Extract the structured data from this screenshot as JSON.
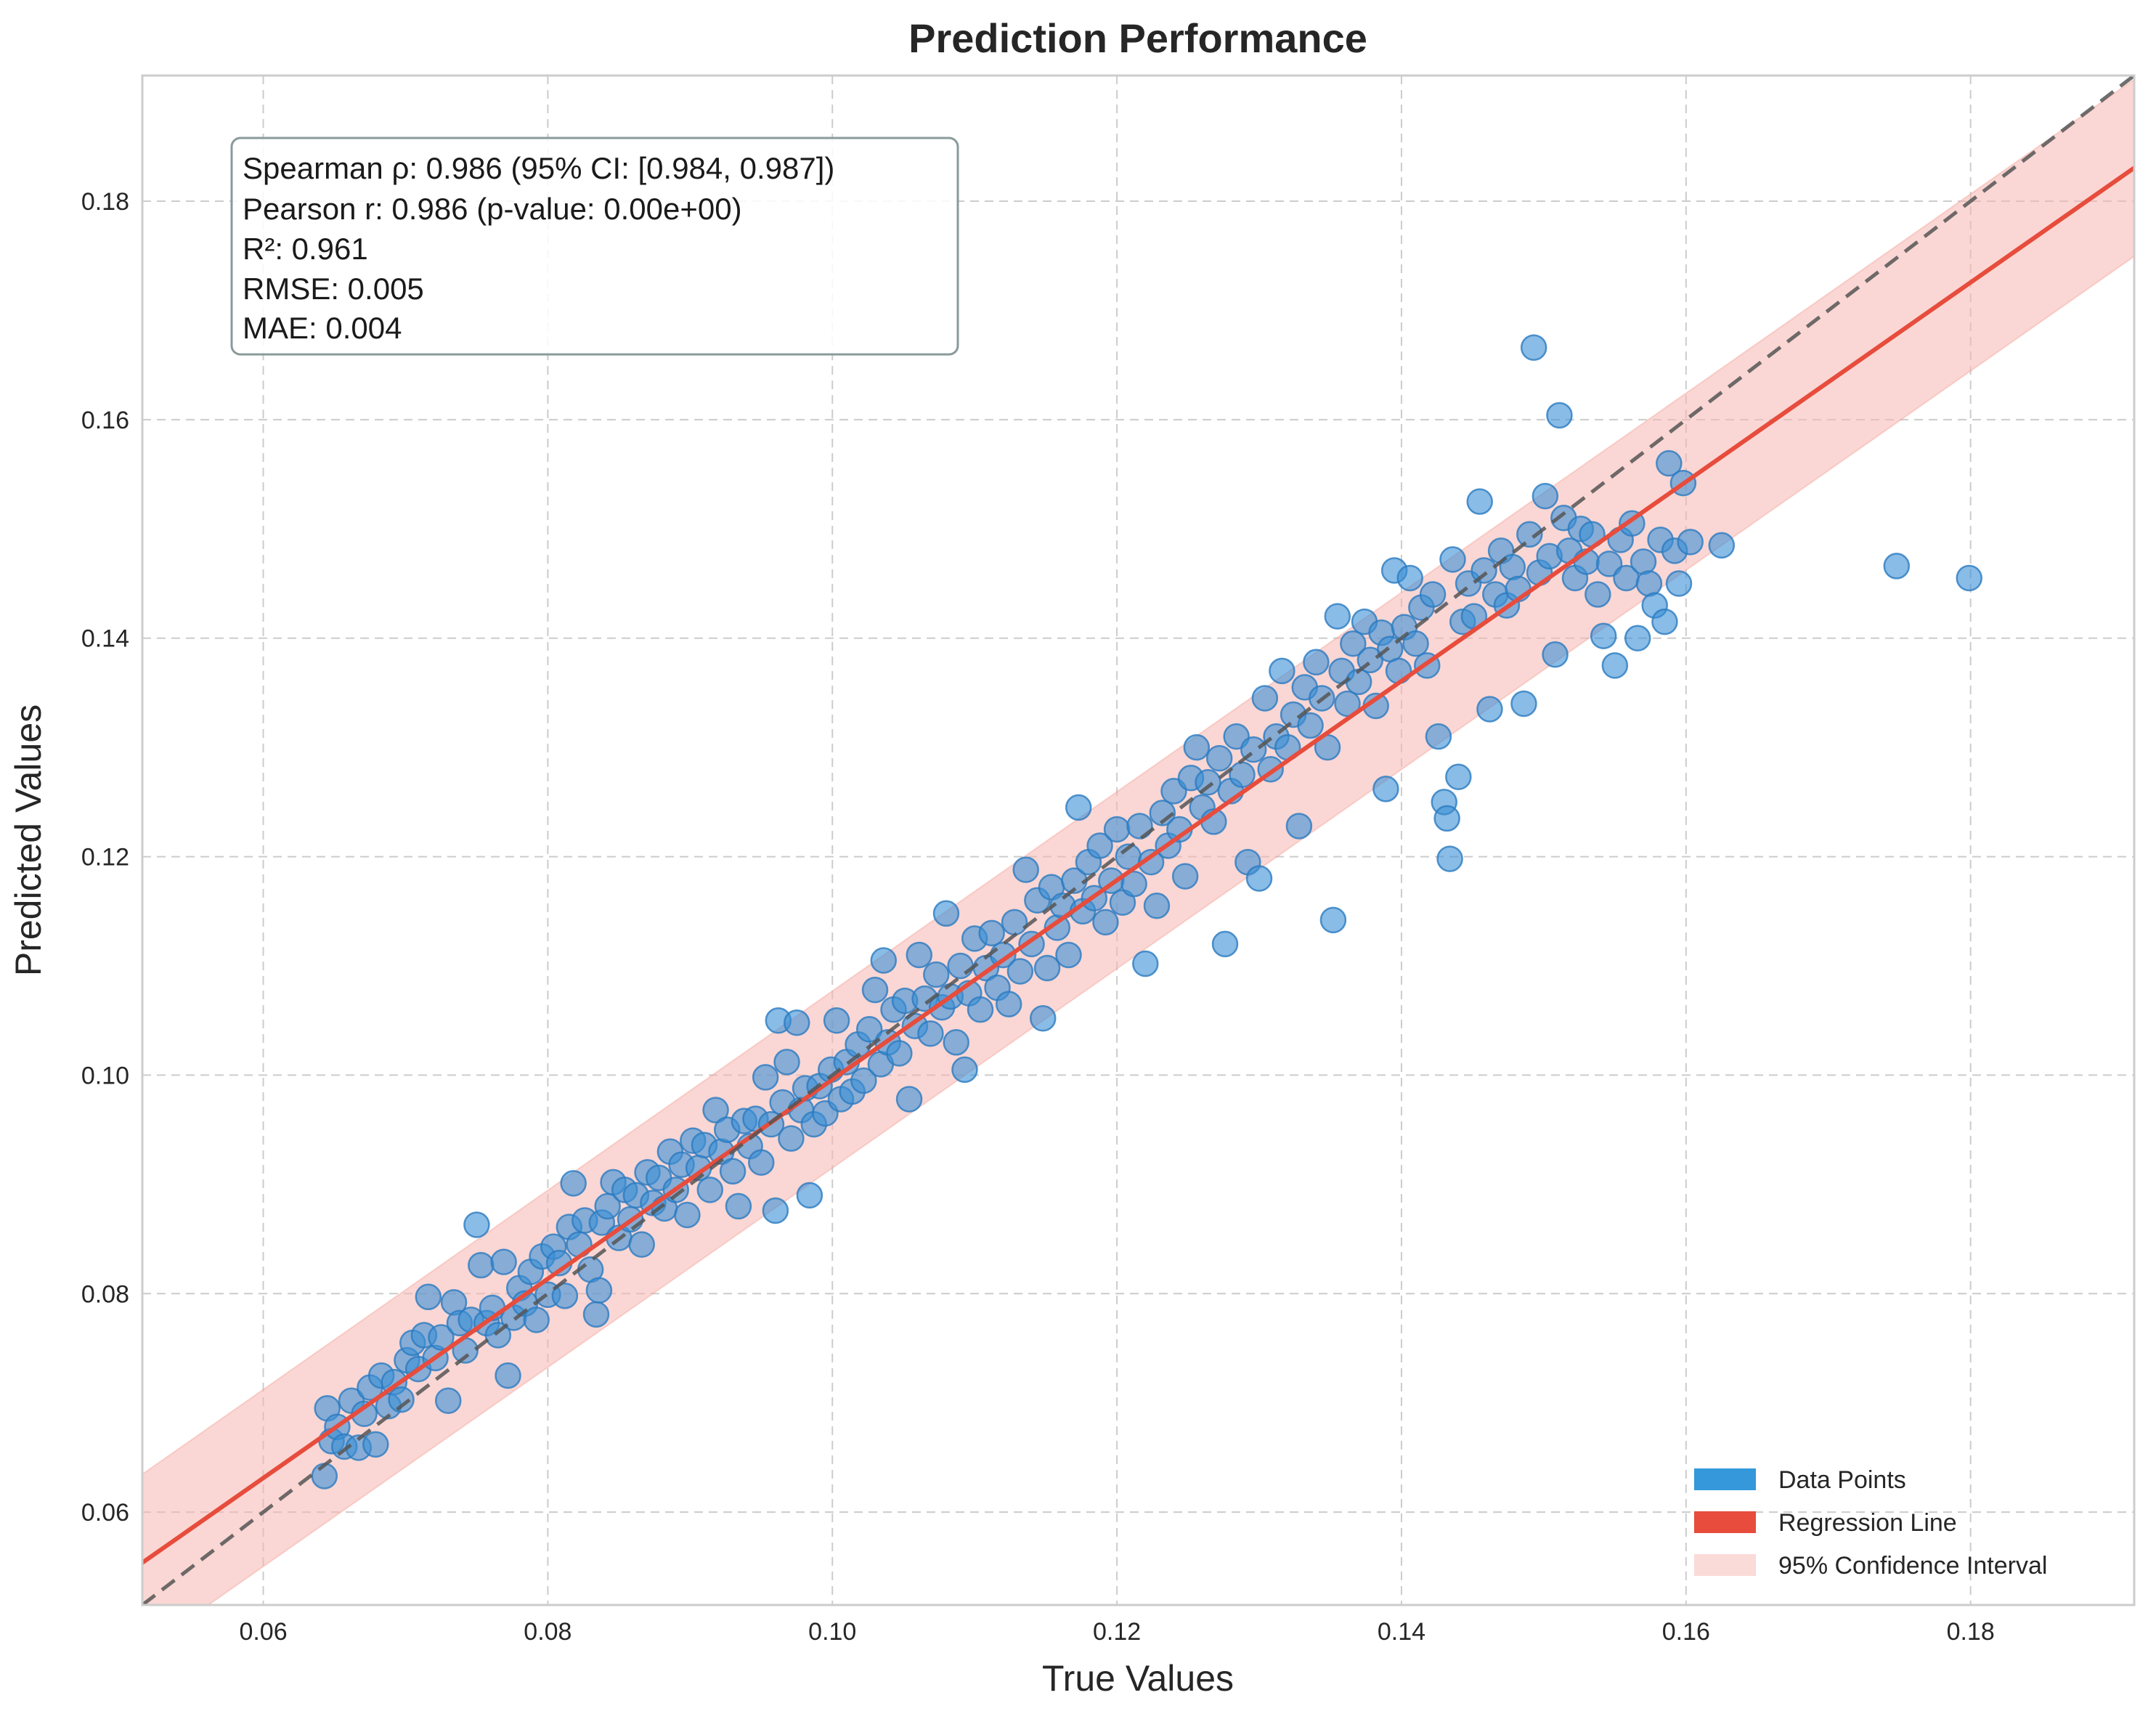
{
  "chart_data": {
    "type": "scatter",
    "title": "Prediction Performance",
    "xlabel": "True Values",
    "ylabel": "Predicted Values",
    "xlim": [
      0.0515,
      0.1915
    ],
    "ylim": [
      0.0515,
      0.1915
    ],
    "xticks": [
      "0.06",
      "0.08",
      "0.10",
      "0.12",
      "0.14",
      "0.16",
      "0.18"
    ],
    "yticks": [
      "0.06",
      "0.08",
      "0.10",
      "0.12",
      "0.14",
      "0.16",
      "0.18"
    ],
    "grid": true,
    "stats_box": {
      "lines": [
        "Spearman ρ: 0.986 (95% CI: [0.984, 0.987])",
        "Pearson r: 0.986 (p-value: 0.00e+00)",
        "R²: 0.961",
        "RMSE: 0.005",
        "MAE: 0.004"
      ],
      "placement": "top-left"
    },
    "regression_line": {
      "slope": 0.912,
      "intercept": 0.0084,
      "color": "#e74c3c"
    },
    "identity_line": {
      "slope": 1,
      "intercept": 0,
      "color": "#555555"
    },
    "confidence_interval": {
      "half_width": 0.0081,
      "color": "#f5b7b1"
    },
    "legend": {
      "placement": "bottom-right",
      "entries": [
        {
          "label": "Data Points",
          "color": "#3498db"
        },
        {
          "label": "Regression Line",
          "color": "#e74c3c"
        },
        {
          "label": "95% Confidence Interval",
          "color": "#fadbd8"
        }
      ]
    },
    "points": [
      [
        0.0643,
        0.0633
      ],
      [
        0.0645,
        0.0695
      ],
      [
        0.0648,
        0.0665
      ],
      [
        0.0652,
        0.0678
      ],
      [
        0.0657,
        0.066
      ],
      [
        0.0662,
        0.0702
      ],
      [
        0.0667,
        0.0659
      ],
      [
        0.0671,
        0.069
      ],
      [
        0.0675,
        0.0714
      ],
      [
        0.0679,
        0.0662
      ],
      [
        0.0683,
        0.0725
      ],
      [
        0.0688,
        0.0697
      ],
      [
        0.0692,
        0.0719
      ],
      [
        0.0697,
        0.0703
      ],
      [
        0.0701,
        0.0739
      ],
      [
        0.0705,
        0.0755
      ],
      [
        0.0709,
        0.0731
      ],
      [
        0.0713,
        0.0762
      ],
      [
        0.0716,
        0.0797
      ],
      [
        0.0721,
        0.0741
      ],
      [
        0.0725,
        0.076
      ],
      [
        0.073,
        0.0702
      ],
      [
        0.0734,
        0.0792
      ],
      [
        0.0738,
        0.0773
      ],
      [
        0.0742,
        0.0748
      ],
      [
        0.0746,
        0.0776
      ],
      [
        0.075,
        0.0863
      ],
      [
        0.0753,
        0.0826
      ],
      [
        0.0757,
        0.0773
      ],
      [
        0.0761,
        0.0787
      ],
      [
        0.0765,
        0.0762
      ],
      [
        0.0769,
        0.0829
      ],
      [
        0.0772,
        0.0725
      ],
      [
        0.0776,
        0.0778
      ],
      [
        0.078,
        0.0805
      ],
      [
        0.0784,
        0.0791
      ],
      [
        0.0788,
        0.082
      ],
      [
        0.0792,
        0.0776
      ],
      [
        0.0796,
        0.0834
      ],
      [
        0.08,
        0.0799
      ],
      [
        0.0804,
        0.0843
      ],
      [
        0.0808,
        0.0828
      ],
      [
        0.0812,
        0.0798
      ],
      [
        0.0815,
        0.0861
      ],
      [
        0.0818,
        0.0901
      ],
      [
        0.0822,
        0.0845
      ],
      [
        0.0826,
        0.0867
      ],
      [
        0.083,
        0.0822
      ],
      [
        0.0834,
        0.0781
      ],
      [
        0.0836,
        0.0803
      ],
      [
        0.0838,
        0.0865
      ],
      [
        0.0842,
        0.088
      ],
      [
        0.0846,
        0.0902
      ],
      [
        0.085,
        0.0851
      ],
      [
        0.0854,
        0.0895
      ],
      [
        0.0858,
        0.0868
      ],
      [
        0.0862,
        0.089
      ],
      [
        0.0866,
        0.0845
      ],
      [
        0.087,
        0.0911
      ],
      [
        0.0874,
        0.0883
      ],
      [
        0.0878,
        0.0906
      ],
      [
        0.0882,
        0.0878
      ],
      [
        0.0886,
        0.093
      ],
      [
        0.089,
        0.0895
      ],
      [
        0.0894,
        0.0918
      ],
      [
        0.0898,
        0.0872
      ],
      [
        0.0902,
        0.094
      ],
      [
        0.0906,
        0.0915
      ],
      [
        0.091,
        0.0936
      ],
      [
        0.0914,
        0.0895
      ],
      [
        0.0918,
        0.0968
      ],
      [
        0.0922,
        0.093
      ],
      [
        0.0926,
        0.095
      ],
      [
        0.093,
        0.0912
      ],
      [
        0.0934,
        0.088
      ],
      [
        0.0938,
        0.0958
      ],
      [
        0.0942,
        0.0935
      ],
      [
        0.0946,
        0.096
      ],
      [
        0.095,
        0.092
      ],
      [
        0.0953,
        0.0998
      ],
      [
        0.0957,
        0.0955
      ],
      [
        0.096,
        0.0876
      ],
      [
        0.0962,
        0.105
      ],
      [
        0.0965,
        0.0975
      ],
      [
        0.0968,
        0.1012
      ],
      [
        0.0971,
        0.0942
      ],
      [
        0.0975,
        0.1048
      ],
      [
        0.0978,
        0.0968
      ],
      [
        0.0981,
        0.0988
      ],
      [
        0.0984,
        0.089
      ],
      [
        0.0987,
        0.0955
      ],
      [
        0.0991,
        0.099
      ],
      [
        0.0995,
        0.0965
      ],
      [
        0.0999,
        0.1005
      ],
      [
        0.1003,
        0.105
      ],
      [
        0.1006,
        0.0978
      ],
      [
        0.101,
        0.1012
      ],
      [
        0.1014,
        0.0985
      ],
      [
        0.1018,
        0.1028
      ],
      [
        0.1022,
        0.0995
      ],
      [
        0.1026,
        0.1042
      ],
      [
        0.103,
        0.1078
      ],
      [
        0.1034,
        0.101
      ],
      [
        0.1036,
        0.1105
      ],
      [
        0.1039,
        0.103
      ],
      [
        0.1043,
        0.106
      ],
      [
        0.1047,
        0.102
      ],
      [
        0.1051,
        0.1068
      ],
      [
        0.1054,
        0.0978
      ],
      [
        0.1058,
        0.1045
      ],
      [
        0.1061,
        0.111
      ],
      [
        0.1065,
        0.107
      ],
      [
        0.1069,
        0.1038
      ],
      [
        0.1073,
        0.1092
      ],
      [
        0.1077,
        0.1062
      ],
      [
        0.108,
        0.1148
      ],
      [
        0.1083,
        0.1072
      ],
      [
        0.1087,
        0.103
      ],
      [
        0.109,
        0.11
      ],
      [
        0.1093,
        0.1005
      ],
      [
        0.1096,
        0.1075
      ],
      [
        0.11,
        0.1125
      ],
      [
        0.1104,
        0.106
      ],
      [
        0.1108,
        0.1098
      ],
      [
        0.1112,
        0.113
      ],
      [
        0.1116,
        0.108
      ],
      [
        0.112,
        0.111
      ],
      [
        0.1124,
        0.1065
      ],
      [
        0.1128,
        0.114
      ],
      [
        0.1132,
        0.1095
      ],
      [
        0.1136,
        0.1188
      ],
      [
        0.114,
        0.112
      ],
      [
        0.1144,
        0.116
      ],
      [
        0.1148,
        0.1052
      ],
      [
        0.1151,
        0.1098
      ],
      [
        0.1154,
        0.1172
      ],
      [
        0.1158,
        0.1135
      ],
      [
        0.1162,
        0.1155
      ],
      [
        0.1166,
        0.111
      ],
      [
        0.117,
        0.1178
      ],
      [
        0.1173,
        0.1245
      ],
      [
        0.1176,
        0.115
      ],
      [
        0.118,
        0.1195
      ],
      [
        0.1184,
        0.1162
      ],
      [
        0.1188,
        0.121
      ],
      [
        0.1192,
        0.114
      ],
      [
        0.1196,
        0.1178
      ],
      [
        0.12,
        0.1225
      ],
      [
        0.1204,
        0.1158
      ],
      [
        0.1208,
        0.12
      ],
      [
        0.1212,
        0.1175
      ],
      [
        0.1216,
        0.1228
      ],
      [
        0.122,
        0.1102
      ],
      [
        0.1224,
        0.1195
      ],
      [
        0.1228,
        0.1155
      ],
      [
        0.1232,
        0.124
      ],
      [
        0.1236,
        0.121
      ],
      [
        0.124,
        0.126
      ],
      [
        0.1244,
        0.1225
      ],
      [
        0.1248,
        0.1182
      ],
      [
        0.1252,
        0.1272
      ],
      [
        0.1256,
        0.13
      ],
      [
        0.126,
        0.1245
      ],
      [
        0.1264,
        0.1268
      ],
      [
        0.1268,
        0.1232
      ],
      [
        0.1272,
        0.129
      ],
      [
        0.1276,
        0.112
      ],
      [
        0.128,
        0.126
      ],
      [
        0.1284,
        0.131
      ],
      [
        0.1288,
        0.1275
      ],
      [
        0.1292,
        0.1195
      ],
      [
        0.1296,
        0.1298
      ],
      [
        0.13,
        0.118
      ],
      [
        0.1304,
        0.1345
      ],
      [
        0.1308,
        0.128
      ],
      [
        0.1312,
        0.131
      ],
      [
        0.1316,
        0.137
      ],
      [
        0.132,
        0.13
      ],
      [
        0.1324,
        0.133
      ],
      [
        0.1328,
        0.1228
      ],
      [
        0.1332,
        0.1355
      ],
      [
        0.1336,
        0.132
      ],
      [
        0.134,
        0.1378
      ],
      [
        0.1344,
        0.1345
      ],
      [
        0.1348,
        0.13
      ],
      [
        0.1352,
        0.1142
      ],
      [
        0.1355,
        0.142
      ],
      [
        0.1358,
        0.137
      ],
      [
        0.1362,
        0.134
      ],
      [
        0.1366,
        0.1395
      ],
      [
        0.137,
        0.136
      ],
      [
        0.1374,
        0.1415
      ],
      [
        0.1378,
        0.138
      ],
      [
        0.1382,
        0.1338
      ],
      [
        0.1386,
        0.1405
      ],
      [
        0.1389,
        0.1262
      ],
      [
        0.1392,
        0.139
      ],
      [
        0.1395,
        0.1462
      ],
      [
        0.1398,
        0.137
      ],
      [
        0.1402,
        0.141
      ],
      [
        0.1406,
        0.1455
      ],
      [
        0.141,
        0.1395
      ],
      [
        0.1414,
        0.1428
      ],
      [
        0.1418,
        0.1375
      ],
      [
        0.1422,
        0.144
      ],
      [
        0.1426,
        0.131
      ],
      [
        0.143,
        0.125
      ],
      [
        0.1432,
        0.1235
      ],
      [
        0.1434,
        0.1198
      ],
      [
        0.1436,
        0.1472
      ],
      [
        0.144,
        0.1273
      ],
      [
        0.1443,
        0.1415
      ],
      [
        0.1447,
        0.145
      ],
      [
        0.1451,
        0.142
      ],
      [
        0.1455,
        0.1525
      ],
      [
        0.1458,
        0.1462
      ],
      [
        0.1462,
        0.1335
      ],
      [
        0.1466,
        0.144
      ],
      [
        0.147,
        0.148
      ],
      [
        0.1474,
        0.143
      ],
      [
        0.1478,
        0.1465
      ],
      [
        0.1482,
        0.1445
      ],
      [
        0.1486,
        0.134
      ],
      [
        0.149,
        0.1495
      ],
      [
        0.1493,
        0.1666
      ],
      [
        0.1497,
        0.146
      ],
      [
        0.1501,
        0.153
      ],
      [
        0.1504,
        0.1475
      ],
      [
        0.1508,
        0.1385
      ],
      [
        0.1511,
        0.1604
      ],
      [
        0.1514,
        0.151
      ],
      [
        0.1518,
        0.148
      ],
      [
        0.1522,
        0.1455
      ],
      [
        0.1526,
        0.15
      ],
      [
        0.153,
        0.147
      ],
      [
        0.1534,
        0.1495
      ],
      [
        0.1538,
        0.144
      ],
      [
        0.1542,
        0.1402
      ],
      [
        0.1546,
        0.1468
      ],
      [
        0.155,
        0.1375
      ],
      [
        0.1554,
        0.149
      ],
      [
        0.1558,
        0.1455
      ],
      [
        0.1562,
        0.1505
      ],
      [
        0.1566,
        0.14
      ],
      [
        0.157,
        0.147
      ],
      [
        0.1574,
        0.145
      ],
      [
        0.1578,
        0.143
      ],
      [
        0.1582,
        0.149
      ],
      [
        0.1585,
        0.1415
      ],
      [
        0.1588,
        0.156
      ],
      [
        0.1592,
        0.148
      ],
      [
        0.1595,
        0.145
      ],
      [
        0.1598,
        0.1542
      ],
      [
        0.1603,
        0.1488
      ],
      [
        0.1625,
        0.1485
      ],
      [
        0.1748,
        0.1466
      ],
      [
        0.1799,
        0.1455
      ]
    ]
  }
}
